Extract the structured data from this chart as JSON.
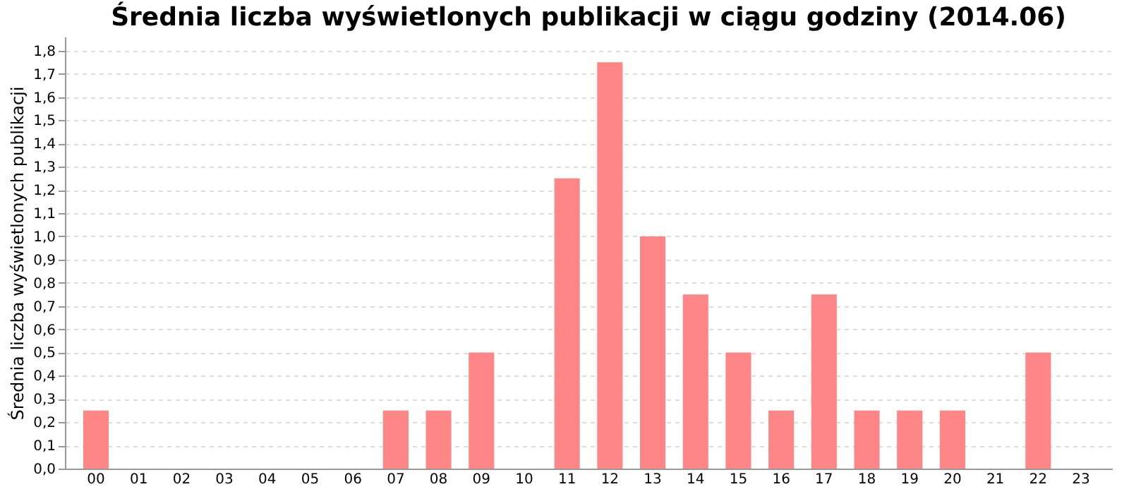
{
  "chart_data": {
    "type": "bar",
    "title": "Średnia liczba wyświetlonych publikacji w ciągu godziny (2014.06)",
    "ylabel": "Średnia liczba wyświetlonych publikacji",
    "categories": [
      "00",
      "01",
      "02",
      "03",
      "04",
      "05",
      "06",
      "07",
      "08",
      "09",
      "10",
      "11",
      "12",
      "13",
      "14",
      "15",
      "16",
      "17",
      "18",
      "19",
      "20",
      "21",
      "22",
      "23"
    ],
    "values": [
      0.25,
      0,
      0,
      0,
      0,
      0,
      0,
      0.25,
      0.25,
      0.5,
      0,
      1.25,
      1.75,
      1.0,
      0.75,
      0.5,
      0.25,
      0.75,
      0.25,
      0.25,
      0.25,
      0,
      0.5,
      0
    ],
    "color": "#ff8080",
    "ylim": [
      0,
      1.86
    ],
    "yticks": [
      {
        "value": 0,
        "label": "0,0"
      },
      {
        "value": 0.1,
        "label": "0,1"
      },
      {
        "value": 0.2,
        "label": "0,2"
      },
      {
        "value": 0.3,
        "label": "0,3"
      },
      {
        "value": 0.4,
        "label": "0,4"
      },
      {
        "value": 0.5,
        "label": "0,5"
      },
      {
        "value": 0.6,
        "label": "0,6"
      },
      {
        "value": 0.7,
        "label": "0,7"
      },
      {
        "value": 0.8,
        "label": "0,8"
      },
      {
        "value": 0.9,
        "label": "0,9"
      },
      {
        "value": 1.0,
        "label": "1,0"
      },
      {
        "value": 1.1,
        "label": "1,1"
      },
      {
        "value": 1.2,
        "label": "1,2"
      },
      {
        "value": 1.3,
        "label": "1,3"
      },
      {
        "value": 1.4,
        "label": "1,4"
      },
      {
        "value": 1.5,
        "label": "1,5"
      },
      {
        "value": 1.6,
        "label": "1,6"
      },
      {
        "value": 1.7,
        "label": "1,7"
      },
      {
        "value": 1.8,
        "label": "1,8"
      }
    ],
    "grid": "y"
  }
}
